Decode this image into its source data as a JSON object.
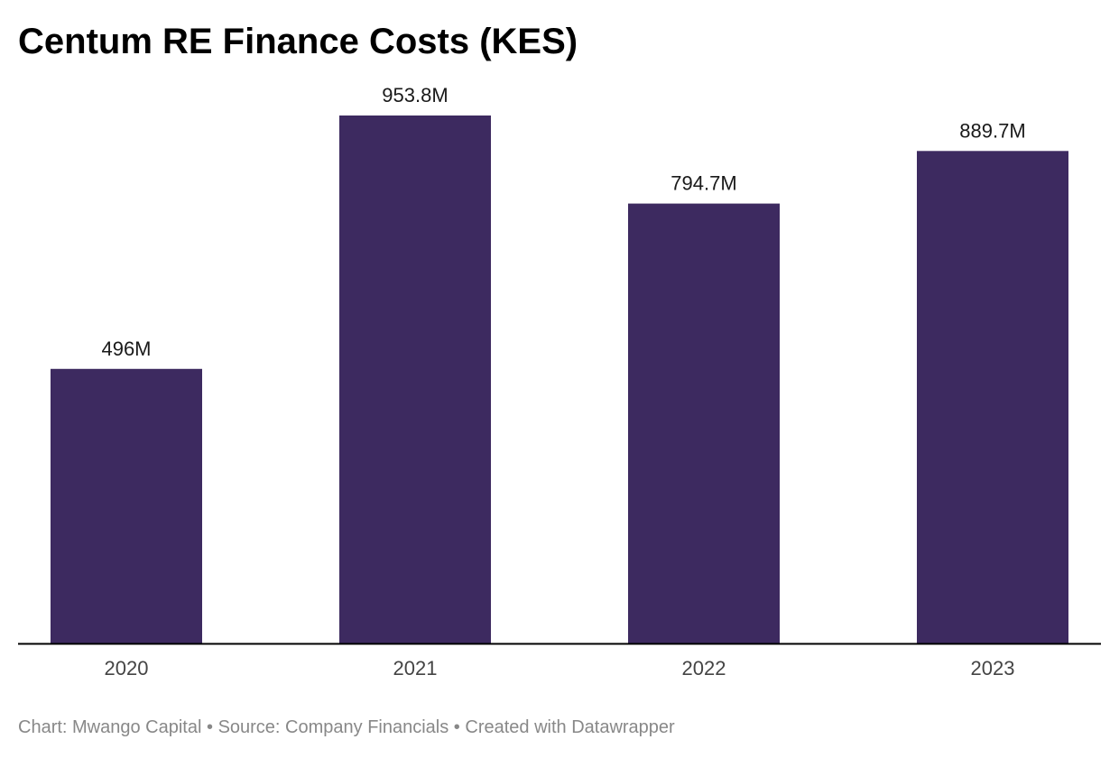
{
  "title": "Centum RE Finance Costs (KES)",
  "footer": {
    "chart_prefix": "Chart: Mwango Capital",
    "source": "Source: Company Financials",
    "tool": "Created with Datawrapper",
    "separator": " • "
  },
  "colors": {
    "bar": "#3d2a60",
    "axis": "#000000"
  },
  "chart_data": {
    "type": "bar",
    "title": "Centum RE Finance Costs (KES)",
    "categories": [
      "2020",
      "2021",
      "2022",
      "2023"
    ],
    "values": [
      496,
      953.8,
      794.7,
      889.7
    ],
    "value_labels": [
      "496M",
      "953.8M",
      "794.7M",
      "889.7M"
    ],
    "unit": "M",
    "xlabel": "",
    "ylabel": "",
    "ylim": [
      0,
      1000
    ],
    "grid": false,
    "legend": "none"
  }
}
